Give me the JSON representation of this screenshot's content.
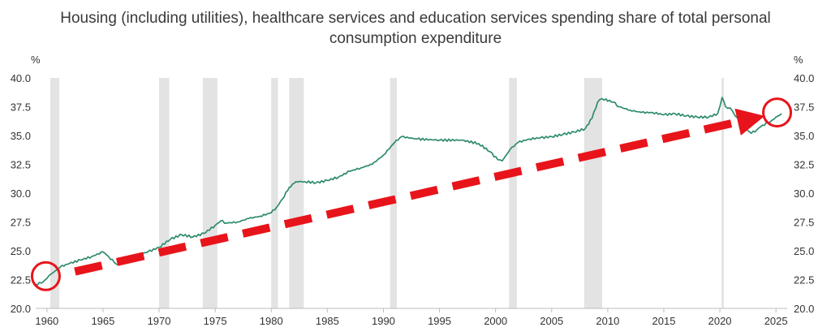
{
  "chart_data": {
    "type": "line",
    "title_lines": [
      "Housing (including utilities), healthcare services and education services spending share of total personal",
      "consumption expenditure"
    ],
    "ylabel_left": "%",
    "ylabel_right": "%",
    "xlim": [
      1959,
      2026
    ],
    "ylim": [
      20.0,
      40.0
    ],
    "y_ticks": [
      "20.0",
      "22.5",
      "25.0",
      "27.5",
      "30.0",
      "32.5",
      "35.0",
      "37.5",
      "40.0"
    ],
    "x_ticks": [
      "1960",
      "1965",
      "1970",
      "1975",
      "1980",
      "1985",
      "1990",
      "1995",
      "2000",
      "2005",
      "2010",
      "2015",
      "2020",
      "2025"
    ],
    "recessions": [
      [
        1960.3,
        1961.1
      ],
      [
        1970.0,
        1970.9
      ],
      [
        1973.9,
        1975.2
      ],
      [
        1980.0,
        1980.6
      ],
      [
        1981.6,
        1982.9
      ],
      [
        1990.6,
        1991.2
      ],
      [
        2001.2,
        2001.9
      ],
      [
        2007.9,
        2009.5
      ],
      [
        2020.15,
        2020.35
      ]
    ],
    "series": [
      {
        "color": "#2e8b6e",
        "points": [
          [
            1959.0,
            22.1
          ],
          [
            1959.5,
            22.2
          ],
          [
            1960.0,
            22.6
          ],
          [
            1960.4,
            23.0
          ],
          [
            1960.8,
            23.3
          ],
          [
            1961.2,
            23.6
          ],
          [
            1962.0,
            23.9
          ],
          [
            1963.0,
            24.2
          ],
          [
            1964.0,
            24.5
          ],
          [
            1965.0,
            24.9
          ],
          [
            1965.5,
            24.5
          ],
          [
            1966.0,
            24.0
          ],
          [
            1966.4,
            23.8
          ],
          [
            1967.0,
            24.2
          ],
          [
            1968.0,
            24.6
          ],
          [
            1969.0,
            24.9
          ],
          [
            1970.0,
            25.3
          ],
          [
            1971.0,
            26.0
          ],
          [
            1972.0,
            26.4
          ],
          [
            1973.0,
            26.2
          ],
          [
            1974.0,
            26.5
          ],
          [
            1975.0,
            27.2
          ],
          [
            1975.5,
            27.6
          ],
          [
            1976.0,
            27.4
          ],
          [
            1977.0,
            27.5
          ],
          [
            1978.0,
            27.8
          ],
          [
            1979.0,
            28.0
          ],
          [
            1980.0,
            28.3
          ],
          [
            1980.5,
            28.8
          ],
          [
            1981.0,
            29.5
          ],
          [
            1981.6,
            30.5
          ],
          [
            1982.2,
            31.0
          ],
          [
            1983.0,
            31.0
          ],
          [
            1984.0,
            30.9
          ],
          [
            1985.0,
            31.1
          ],
          [
            1986.0,
            31.4
          ],
          [
            1987.0,
            31.9
          ],
          [
            1988.0,
            32.2
          ],
          [
            1989.0,
            32.5
          ],
          [
            1990.0,
            33.3
          ],
          [
            1991.0,
            34.4
          ],
          [
            1991.6,
            34.9
          ],
          [
            1993.0,
            34.7
          ],
          [
            1995.0,
            34.6
          ],
          [
            1997.0,
            34.6
          ],
          [
            1998.5,
            34.3
          ],
          [
            1999.5,
            33.6
          ],
          [
            2000.2,
            32.9
          ],
          [
            2000.6,
            32.8
          ],
          [
            2001.3,
            33.8
          ],
          [
            2002.0,
            34.4
          ],
          [
            2003.0,
            34.7
          ],
          [
            2004.0,
            34.8
          ],
          [
            2005.0,
            34.9
          ],
          [
            2006.0,
            35.1
          ],
          [
            2007.0,
            35.3
          ],
          [
            2008.0,
            35.6
          ],
          [
            2008.6,
            36.5
          ],
          [
            2009.1,
            37.9
          ],
          [
            2009.5,
            38.2
          ],
          [
            2010.5,
            37.9
          ],
          [
            2011.0,
            37.5
          ],
          [
            2012.0,
            37.2
          ],
          [
            2013.0,
            37.0
          ],
          [
            2014.0,
            37.0
          ],
          [
            2015.0,
            36.8
          ],
          [
            2016.0,
            36.9
          ],
          [
            2017.0,
            36.7
          ],
          [
            2018.0,
            36.6
          ],
          [
            2019.0,
            36.6
          ],
          [
            2019.8,
            36.9
          ],
          [
            2020.2,
            38.3
          ],
          [
            2020.5,
            37.5
          ],
          [
            2020.9,
            37.4
          ],
          [
            2021.3,
            36.8
          ],
          [
            2021.8,
            36.3
          ],
          [
            2022.3,
            35.6
          ],
          [
            2022.8,
            35.2
          ],
          [
            2023.3,
            35.5
          ],
          [
            2023.8,
            35.9
          ],
          [
            2024.3,
            36.1
          ],
          [
            2024.8,
            36.4
          ],
          [
            2025.2,
            36.7
          ],
          [
            2025.5,
            36.9
          ]
        ]
      }
    ],
    "annotations": {
      "arrow": {
        "color": "#e8141b",
        "from": [
          1962.5,
          23.2
        ],
        "to": [
          2024.0,
          36.7
        ],
        "style": "dashed"
      },
      "circles": [
        {
          "color": "#e8141b",
          "center": [
            1959.9,
            22.8
          ]
        },
        {
          "color": "#e8141b",
          "center": [
            2025.1,
            37.0
          ]
        }
      ]
    },
    "grid": false,
    "legend": "none"
  }
}
